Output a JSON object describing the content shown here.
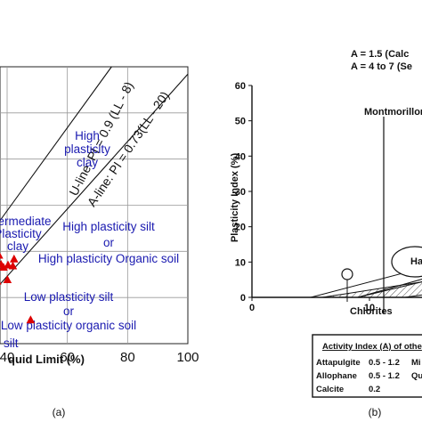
{
  "chart_data": [
    {
      "type": "scatter",
      "caption": "(a)",
      "xlabel_visible": "quid Limit (%)",
      "x_ticks": [
        "40",
        "60",
        "80",
        "100"
      ],
      "xlim": [
        35,
        100
      ],
      "ylim": [
        0,
        60
      ],
      "grid": true,
      "lines": [
        {
          "label": "U-line: PI = 0.9 (LL - 8)",
          "slope": 0.9,
          "offset": 8
        },
        {
          "label": "A-line: PI = 0.73(LL - 20)",
          "slope": 0.73,
          "offset": 20
        }
      ],
      "zones": [
        {
          "lines": [
            "High",
            "plasticity",
            "clay"
          ]
        },
        {
          "lines": [
            "Intermediate",
            "Plasticity",
            "clay"
          ]
        },
        {
          "lines": [
            "High plasticity silt",
            "or",
            "High plasticity Organic soil"
          ]
        },
        {
          "lines": [
            "Low plasticity silt",
            "or",
            "Low plasticity organic soil"
          ]
        },
        {
          "lines": [
            "silt"
          ]
        }
      ],
      "points": [
        {
          "x": 36.2,
          "y": 22.5
        },
        {
          "x": 37.3,
          "y": 19.2
        },
        {
          "x": 38.0,
          "y": 17.2
        },
        {
          "x": 38.8,
          "y": 16.6
        },
        {
          "x": 40.3,
          "y": 17.1
        },
        {
          "x": 41.9,
          "y": 16.9
        },
        {
          "x": 42.3,
          "y": 18.4
        },
        {
          "x": 36.7,
          "y": 13.6
        },
        {
          "x": 36.0,
          "y": 11.3
        },
        {
          "x": 40.1,
          "y": 13.9
        },
        {
          "x": 35.9,
          "y": 5.9
        },
        {
          "x": 47.8,
          "y": 5.2
        }
      ],
      "marker_color": "#dd0000"
    },
    {
      "type": "scatter",
      "caption": "(b)",
      "ylabel": "Plasticity Index (%)",
      "xlim": [
        0,
        60
      ],
      "ylim": [
        0,
        60
      ],
      "x_ticks": [
        "0",
        "10",
        "20",
        "30",
        "40",
        "50"
      ],
      "y_ticks": [
        "0",
        "10",
        "20",
        "30",
        "40",
        "50",
        "60"
      ],
      "header_lines": [
        "A = 1.5 (Calc",
        "A = 4 to 7 (Se"
      ],
      "labels": {
        "montmorillonite": "Montmorillon",
        "halloysite": "Halloys",
        "chlorites": "Chlorites"
      },
      "points": [
        {
          "x": 31.5,
          "y": 9.2
        },
        {
          "x": 33.0,
          "y": 12.5
        },
        {
          "x": 32.0,
          "y": 21.3
        },
        {
          "x": 36.0,
          "y": 26.1
        },
        {
          "x": 39.0,
          "y": 19.0
        },
        {
          "x": 39.5,
          "y": 21.3
        },
        {
          "x": 40.0,
          "y": 15.4
        },
        {
          "x": 41.0,
          "y": 22.6
        },
        {
          "x": 42.0,
          "y": 19.9
        },
        {
          "x": 43.0,
          "y": 18.5
        },
        {
          "x": 44.0,
          "y": 20.5
        },
        {
          "x": 44.5,
          "y": 17.1
        },
        {
          "x": 45.5,
          "y": 20.5
        },
        {
          "x": 46.5,
          "y": 22.6
        },
        {
          "x": 47.5,
          "y": 25.5
        },
        {
          "x": 47.5,
          "y": 27.6
        },
        {
          "x": 48.0,
          "y": 24.1
        },
        {
          "x": 48.5,
          "y": 20.2
        }
      ],
      "marker_color": "#dd0000",
      "activity_table": {
        "title": "Activity Index (A) of othe",
        "rows": [
          {
            "mineral": "Attapulgite",
            "value": "0.5 - 1.2",
            "extra": "Mi"
          },
          {
            "mineral": "Allophane",
            "value": "0.5 - 1.2",
            "extra": "Qu"
          },
          {
            "mineral": "Calcite",
            "value": "0.2",
            "extra": ""
          }
        ]
      }
    }
  ]
}
